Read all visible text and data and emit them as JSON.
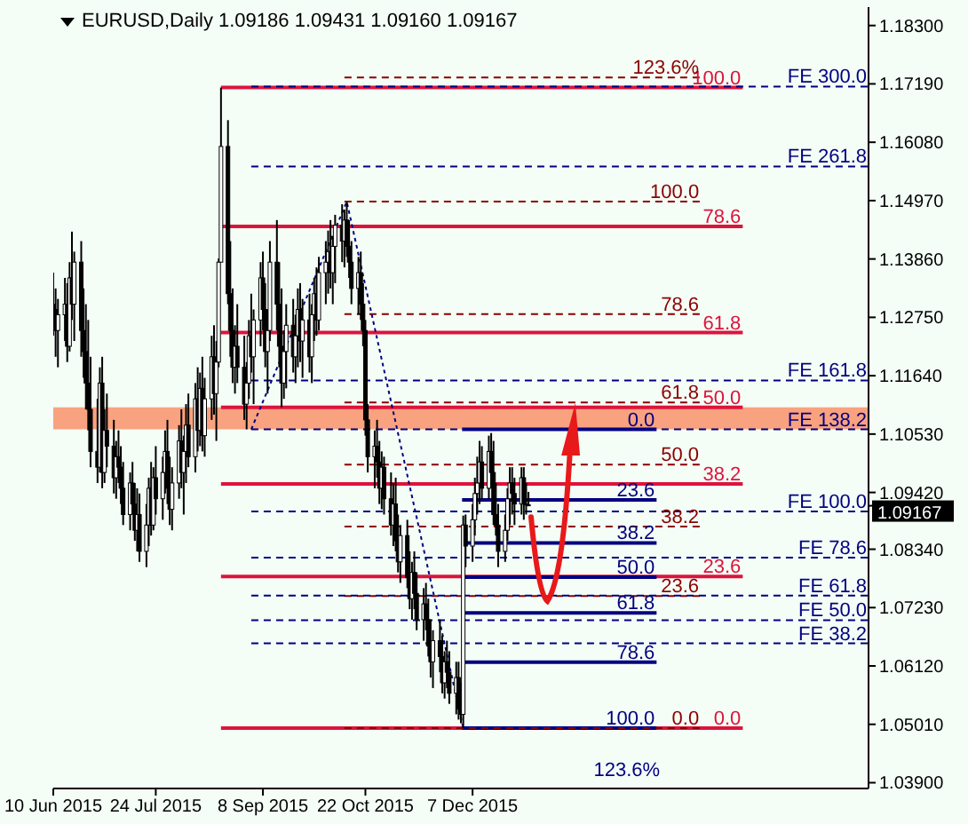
{
  "chart_data": {
    "type": "candlestick",
    "title": "EURUSD,Daily 1.09186 1.09431 1.09160 1.09167",
    "color": "#000000",
    "xlim": [
      "2015-06-10",
      "2016-05-25"
    ],
    "ylim": [
      1.0379,
      1.1865
    ],
    "xticks": [
      {
        "value": "2015-06-10",
        "label": "10 Jun 2015"
      },
      {
        "value": "2015-07-24",
        "label": "24 Jul 2015"
      },
      {
        "value": "2015-09-08",
        "label": "8 Sep 2015"
      },
      {
        "value": "2015-10-22",
        "label": "22 Oct 2015"
      },
      {
        "value": "2015-12-07",
        "label": "7 Dec 2015"
      }
    ],
    "yticks": [
      {
        "value": 1.183,
        "label": "1.18300"
      },
      {
        "value": 1.1719,
        "label": "1.17190"
      },
      {
        "value": 1.1608,
        "label": "1.16080"
      },
      {
        "value": 1.1497,
        "label": "1.14970"
      },
      {
        "value": 1.1386,
        "label": "1.13860"
      },
      {
        "value": 1.1275,
        "label": "1.12750"
      },
      {
        "value": 1.1164,
        "label": "1.11640"
      },
      {
        "value": 1.1053,
        "label": "1.10530"
      },
      {
        "value": 1.0942,
        "label": "1.09420"
      },
      {
        "value": 1.0834,
        "label": "1.08340"
      },
      {
        "value": 1.0723,
        "label": "1.07230"
      },
      {
        "value": 1.0612,
        "label": "1.06120"
      },
      {
        "value": 1.0501,
        "label": "1.05010"
      },
      {
        "value": 1.039,
        "label": "1.03900"
      },
      {
        "value": 1.09167,
        "label": "1.09167"
      }
    ],
    "x": [
      "2015-06-10",
      "2015-06-11",
      "2015-06-12",
      "2015-06-15",
      "2015-06-16",
      "2015-06-17",
      "2015-06-18",
      "2015-06-19",
      "2015-06-22",
      "2015-06-23",
      "2015-06-24",
      "2015-06-25",
      "2015-06-26",
      "2015-06-29",
      "2015-06-30",
      "2015-07-01",
      "2015-07-02",
      "2015-07-03",
      "2015-07-06",
      "2015-07-07",
      "2015-07-08",
      "2015-07-09",
      "2015-07-10",
      "2015-07-13",
      "2015-07-14",
      "2015-07-15",
      "2015-07-16",
      "2015-07-17",
      "2015-07-20",
      "2015-07-21",
      "2015-07-22",
      "2015-07-23",
      "2015-07-24",
      "2015-07-27",
      "2015-07-28",
      "2015-07-29",
      "2015-07-30",
      "2015-07-31",
      "2015-08-03",
      "2015-08-04",
      "2015-08-05",
      "2015-08-06",
      "2015-08-07",
      "2015-08-10",
      "2015-08-11",
      "2015-08-12",
      "2015-08-13",
      "2015-08-14",
      "2015-08-17",
      "2015-08-18",
      "2015-08-19",
      "2015-08-20",
      "2015-08-21",
      "2015-08-24",
      "2015-08-25",
      "2015-08-26",
      "2015-08-27",
      "2015-08-28",
      "2015-08-31",
      "2015-09-01",
      "2015-09-02",
      "2015-09-03",
      "2015-09-04",
      "2015-09-07",
      "2015-09-08",
      "2015-09-09",
      "2015-09-10",
      "2015-09-11",
      "2015-09-14",
      "2015-09-15",
      "2015-09-16",
      "2015-09-17",
      "2015-09-18",
      "2015-09-21",
      "2015-09-22",
      "2015-09-23",
      "2015-09-24",
      "2015-09-25",
      "2015-09-28",
      "2015-09-29",
      "2015-09-30",
      "2015-10-01",
      "2015-10-02",
      "2015-10-05",
      "2015-10-06",
      "2015-10-07",
      "2015-10-08",
      "2015-10-09",
      "2015-10-12",
      "2015-10-13",
      "2015-10-14",
      "2015-10-15",
      "2015-10-16",
      "2015-10-19",
      "2015-10-20",
      "2015-10-21",
      "2015-10-22",
      "2015-10-23",
      "2015-10-26",
      "2015-10-27",
      "2015-10-28",
      "2015-10-29",
      "2015-10-30",
      "2015-11-02",
      "2015-11-03",
      "2015-11-04",
      "2015-11-05",
      "2015-11-06",
      "2015-11-09",
      "2015-11-10",
      "2015-11-11",
      "2015-11-12",
      "2015-11-13",
      "2015-11-16",
      "2015-11-17",
      "2015-11-18",
      "2015-11-19",
      "2015-11-20",
      "2015-11-23",
      "2015-11-24",
      "2015-11-25",
      "2015-11-26",
      "2015-11-27",
      "2015-11-30",
      "2015-12-01",
      "2015-12-02",
      "2015-12-03",
      "2015-12-04",
      "2015-12-07",
      "2015-12-08",
      "2015-12-09",
      "2015-12-10",
      "2015-12-11",
      "2015-12-14",
      "2015-12-15",
      "2015-12-16",
      "2015-12-17",
      "2015-12-18",
      "2015-12-21",
      "2015-12-22",
      "2015-12-23",
      "2015-12-24",
      "2015-12-25",
      "2015-12-28",
      "2015-12-29",
      "2015-12-30",
      "2015-12-31"
    ],
    "ohlc": [
      [
        1.13,
        1.136,
        1.124,
        1.129
      ],
      [
        1.129,
        1.133,
        1.12,
        1.125
      ],
      [
        1.125,
        1.131,
        1.118,
        1.128
      ],
      [
        1.128,
        1.135,
        1.123,
        1.13
      ],
      [
        1.13,
        1.134,
        1.119,
        1.122
      ],
      [
        1.122,
        1.138,
        1.121,
        1.135
      ],
      [
        1.135,
        1.1438,
        1.127,
        1.13
      ],
      [
        1.13,
        1.14,
        1.123,
        1.138
      ],
      [
        1.138,
        1.142,
        1.12,
        1.125
      ],
      [
        1.125,
        1.133,
        1.116,
        1.121
      ],
      [
        1.121,
        1.13,
        1.11,
        1.115
      ],
      [
        1.115,
        1.127,
        1.106,
        1.11
      ],
      [
        1.11,
        1.12,
        1.099,
        1.102
      ],
      [
        1.102,
        1.112,
        1.096,
        1.099
      ],
      [
        1.099,
        1.118,
        1.098,
        1.115
      ],
      [
        1.115,
        1.12,
        1.095,
        1.098
      ],
      [
        1.098,
        1.11,
        1.096,
        1.106
      ],
      [
        1.106,
        1.113,
        1.099,
        1.103
      ],
      [
        1.103,
        1.108,
        1.094,
        1.097
      ],
      [
        1.097,
        1.104,
        1.093,
        1.101
      ],
      [
        1.101,
        1.106,
        1.096,
        1.099
      ],
      [
        1.099,
        1.103,
        1.092,
        1.095
      ],
      [
        1.095,
        1.1,
        1.088,
        1.09
      ],
      [
        1.09,
        1.098,
        1.087,
        1.096
      ],
      [
        1.096,
        1.1,
        1.09,
        1.092
      ],
      [
        1.092,
        1.096,
        1.085,
        1.087
      ],
      [
        1.087,
        1.095,
        1.083,
        1.09
      ],
      [
        1.09,
        1.094,
        1.081,
        1.083
      ],
      [
        1.083,
        1.092,
        1.08,
        1.088
      ],
      [
        1.088,
        1.097,
        1.084,
        1.095
      ],
      [
        1.095,
        1.1,
        1.086,
        1.088
      ],
      [
        1.088,
        1.099,
        1.087,
        1.097
      ],
      [
        1.097,
        1.103,
        1.09,
        1.093
      ],
      [
        1.093,
        1.101,
        1.089,
        1.098
      ],
      [
        1.098,
        1.106,
        1.094,
        1.102
      ],
      [
        1.102,
        1.108,
        1.092,
        1.095
      ],
      [
        1.095,
        1.101,
        1.088,
        1.091
      ],
      [
        1.091,
        1.099,
        1.087,
        1.096
      ],
      [
        1.096,
        1.107,
        1.093,
        1.104
      ],
      [
        1.104,
        1.11,
        1.095,
        1.098
      ],
      [
        1.098,
        1.105,
        1.09,
        1.102
      ],
      [
        1.102,
        1.111,
        1.096,
        1.107
      ],
      [
        1.107,
        1.113,
        1.099,
        1.101
      ],
      [
        1.101,
        1.115,
        1.098,
        1.112
      ],
      [
        1.112,
        1.118,
        1.102,
        1.106
      ],
      [
        1.106,
        1.117,
        1.103,
        1.114
      ],
      [
        1.114,
        1.12,
        1.102,
        1.105
      ],
      [
        1.105,
        1.116,
        1.101,
        1.112
      ],
      [
        1.112,
        1.124,
        1.108,
        1.12
      ],
      [
        1.12,
        1.126,
        1.109,
        1.113
      ],
      [
        1.113,
        1.123,
        1.104,
        1.119
      ],
      [
        1.119,
        1.1387,
        1.118,
        1.138
      ],
      [
        1.138,
        1.1712,
        1.138,
        1.16
      ],
      [
        1.16,
        1.165,
        1.13,
        1.132
      ],
      [
        1.132,
        1.142,
        1.12,
        1.125
      ],
      [
        1.125,
        1.133,
        1.115,
        1.118
      ],
      [
        1.118,
        1.126,
        1.113,
        1.122
      ],
      [
        1.122,
        1.13,
        1.115,
        1.118
      ],
      [
        1.118,
        1.124,
        1.108,
        1.111
      ],
      [
        1.111,
        1.119,
        1.1062,
        1.115
      ],
      [
        1.115,
        1.127,
        1.112,
        1.124
      ],
      [
        1.124,
        1.132,
        1.117,
        1.12
      ],
      [
        1.12,
        1.129,
        1.111,
        1.127
      ],
      [
        1.127,
        1.138,
        1.122,
        1.135
      ],
      [
        1.135,
        1.14,
        1.125,
        1.129
      ],
      [
        1.129,
        1.134,
        1.118,
        1.121
      ],
      [
        1.121,
        1.129,
        1.113,
        1.125
      ],
      [
        1.125,
        1.142,
        1.123,
        1.138
      ],
      [
        1.138,
        1.146,
        1.125,
        1.13
      ],
      [
        1.13,
        1.138,
        1.118,
        1.122
      ],
      [
        1.122,
        1.133,
        1.1104,
        1.115
      ],
      [
        1.115,
        1.125,
        1.112,
        1.121
      ],
      [
        1.121,
        1.13,
        1.114,
        1.126
      ],
      [
        1.126,
        1.131,
        1.117,
        1.12
      ],
      [
        1.12,
        1.128,
        1.115,
        1.124
      ],
      [
        1.124,
        1.133,
        1.118,
        1.129
      ],
      [
        1.129,
        1.134,
        1.119,
        1.123
      ],
      [
        1.123,
        1.131,
        1.116,
        1.127
      ],
      [
        1.127,
        1.132,
        1.117,
        1.12
      ],
      [
        1.12,
        1.13,
        1.115,
        1.128
      ],
      [
        1.128,
        1.135,
        1.123,
        1.132
      ],
      [
        1.132,
        1.137,
        1.124,
        1.127
      ],
      [
        1.127,
        1.139,
        1.125,
        1.136
      ],
      [
        1.136,
        1.142,
        1.13,
        1.138
      ],
      [
        1.138,
        1.144,
        1.132,
        1.14
      ],
      [
        1.14,
        1.146,
        1.133,
        1.136
      ],
      [
        1.136,
        1.143,
        1.13,
        1.141
      ],
      [
        1.141,
        1.147,
        1.134,
        1.145
      ],
      [
        1.145,
        1.149,
        1.138,
        1.142
      ],
      [
        1.142,
        1.148,
        1.137,
        1.146
      ],
      [
        1.146,
        1.1495,
        1.139,
        1.141
      ],
      [
        1.141,
        1.146,
        1.135,
        1.138
      ],
      [
        1.138,
        1.142,
        1.13,
        1.133
      ],
      [
        1.133,
        1.139,
        1.128,
        1.136
      ],
      [
        1.136,
        1.14,
        1.127,
        1.13
      ],
      [
        1.13,
        1.134,
        1.122,
        1.125
      ],
      [
        1.125,
        1.127,
        1.105,
        1.108
      ],
      [
        1.108,
        1.111,
        1.098,
        1.101
      ],
      [
        1.101,
        1.106,
        1.095,
        1.103
      ],
      [
        1.103,
        1.108,
        1.097,
        1.1
      ],
      [
        1.1,
        1.104,
        1.092,
        1.095
      ],
      [
        1.095,
        1.102,
        1.091,
        1.099
      ],
      [
        1.099,
        1.101,
        1.09,
        1.093
      ],
      [
        1.093,
        1.098,
        1.086,
        1.088
      ],
      [
        1.088,
        1.096,
        1.084,
        1.092
      ],
      [
        1.092,
        1.097,
        1.083,
        1.085
      ],
      [
        1.085,
        1.09,
        1.079,
        1.081
      ],
      [
        1.081,
        1.088,
        1.077,
        1.086
      ],
      [
        1.086,
        1.089,
        1.076,
        1.078
      ],
      [
        1.078,
        1.083,
        1.072,
        1.074
      ],
      [
        1.074,
        1.081,
        1.07,
        1.079
      ],
      [
        1.079,
        1.083,
        1.072,
        1.075
      ],
      [
        1.075,
        1.079,
        1.068,
        1.07
      ],
      [
        1.07,
        1.076,
        1.066,
        1.073
      ],
      [
        1.073,
        1.077,
        1.068,
        1.07
      ],
      [
        1.07,
        1.074,
        1.063,
        1.065
      ],
      [
        1.065,
        1.07,
        1.059,
        1.062
      ],
      [
        1.062,
        1.068,
        1.057,
        1.066
      ],
      [
        1.066,
        1.07,
        1.06,
        1.063
      ],
      [
        1.063,
        1.067,
        1.056,
        1.058
      ],
      [
        1.058,
        1.064,
        1.055,
        1.062
      ],
      [
        1.062,
        1.066,
        1.057,
        1.06
      ],
      [
        1.06,
        1.064,
        1.054,
        1.056
      ],
      [
        1.056,
        1.062,
        1.052,
        1.059
      ],
      [
        1.059,
        1.062,
        1.051,
        1.053
      ],
      [
        1.053,
        1.058,
        1.0503,
        1.052
      ],
      [
        1.052,
        1.0898,
        1.0494,
        1.088
      ],
      [
        1.088,
        1.09,
        1.08,
        1.084
      ],
      [
        1.084,
        1.092,
        1.081,
        1.089
      ],
      [
        1.089,
        1.097,
        1.086,
        1.094
      ],
      [
        1.094,
        1.101,
        1.09,
        1.096
      ],
      [
        1.096,
        1.104,
        1.092,
        1.1
      ],
      [
        1.1,
        1.103,
        1.093,
        1.095
      ],
      [
        1.095,
        1.105,
        1.093,
        1.102
      ],
      [
        1.102,
        1.1055,
        1.095,
        1.098
      ],
      [
        1.098,
        1.104,
        1.088,
        1.09
      ],
      [
        1.09,
        1.096,
        1.086,
        1.088
      ],
      [
        1.088,
        1.092,
        1.08,
        1.083
      ],
      [
        1.083,
        1.09,
        1.081,
        1.087
      ],
      [
        1.087,
        1.095,
        1.085,
        1.093
      ],
      [
        1.093,
        1.099,
        1.088,
        1.096
      ],
      [
        1.096,
        1.099,
        1.09,
        1.094
      ],
      [
        1.094,
        1.097,
        1.088,
        1.092
      ],
      [
        1.092,
        1.099,
        1.09,
        1.097
      ],
      [
        1.097,
        1.099,
        1.089,
        1.092
      ],
      [
        1.092,
        1.096,
        1.09,
        1.0919
      ],
      [
        1.09186,
        1.09431,
        1.0916,
        1.09167
      ]
    ],
    "series": [
      {
        "type": "line",
        "color": "#dc143c",
        "line_style": "solid",
        "x": [
          "2015-08-21",
          "2016-04-01"
        ],
        "values": [
          1.1712,
          1.1712
        ]
      },
      {
        "type": "line",
        "color": "#dc143c",
        "line_style": "solid",
        "x": [
          "2015-08-21",
          "2016-04-01"
        ],
        "values": [
          1.1448,
          1.1448
        ]
      },
      {
        "type": "line",
        "color": "#dc143c",
        "line_style": "solid",
        "x": [
          "2015-08-21",
          "2016-04-01"
        ],
        "values": [
          1.1246,
          1.1246
        ]
      },
      {
        "type": "line",
        "color": "#dc143c",
        "line_style": "solid",
        "x": [
          "2015-08-21",
          "2016-04-01"
        ],
        "values": [
          1.1104,
          1.1104
        ]
      },
      {
        "type": "line",
        "color": "#dc143c",
        "line_style": "solid",
        "x": [
          "2015-08-21",
          "2016-04-01"
        ],
        "values": [
          1.0958,
          1.0958
        ]
      },
      {
        "type": "line",
        "color": "#dc143c",
        "line_style": "solid",
        "x": [
          "2015-08-21",
          "2016-04-01"
        ],
        "values": [
          1.0782,
          1.0782
        ]
      },
      {
        "type": "line",
        "color": "#dc143c",
        "line_style": "solid",
        "x": [
          "2015-08-21",
          "2016-04-01"
        ],
        "values": [
          1.0494,
          1.0494
        ]
      },
      {
        "type": "line",
        "color": "#8b0000",
        "line_style": "dashed",
        "x": [
          "2015-10-13",
          "2016-03-14"
        ],
        "values": [
          1.1731,
          1.1731
        ]
      },
      {
        "type": "line",
        "color": "#8b0000",
        "line_style": "dashed",
        "x": [
          "2015-10-13",
          "2016-03-14"
        ],
        "values": [
          1.1495,
          1.1495
        ]
      },
      {
        "type": "line",
        "color": "#8b0000",
        "line_style": "dashed",
        "x": [
          "2015-10-13",
          "2016-03-14"
        ],
        "values": [
          1.1281,
          1.1281
        ]
      },
      {
        "type": "line",
        "color": "#8b0000",
        "line_style": "dashed",
        "x": [
          "2015-10-13",
          "2016-03-14"
        ],
        "values": [
          1.1113,
          1.1113
        ]
      },
      {
        "type": "line",
        "color": "#8b0000",
        "line_style": "dashed",
        "x": [
          "2015-10-13",
          "2016-03-14"
        ],
        "values": [
          1.0995,
          1.0995
        ]
      },
      {
        "type": "line",
        "color": "#8b0000",
        "line_style": "dashed",
        "x": [
          "2015-10-13",
          "2016-03-14"
        ],
        "values": [
          1.0877,
          1.0877
        ]
      },
      {
        "type": "line",
        "color": "#8b0000",
        "line_style": "dashed",
        "x": [
          "2015-10-13",
          "2016-03-14"
        ],
        "values": [
          1.0745,
          1.0745
        ]
      },
      {
        "type": "line",
        "color": "#8b0000",
        "line_style": "dashed",
        "x": [
          "2015-10-13",
          "2016-03-14"
        ],
        "values": [
          1.0494,
          1.0494
        ]
      },
      {
        "type": "line",
        "color": "#000080",
        "line_style": "dashed",
        "x": [
          "2015-09-03",
          "2016-05-25"
        ],
        "values": [
          1.1714,
          1.1714
        ]
      },
      {
        "type": "line",
        "color": "#000080",
        "line_style": "dashed",
        "x": [
          "2015-09-03",
          "2016-05-25"
        ],
        "values": [
          1.1562,
          1.1562
        ]
      },
      {
        "type": "line",
        "color": "#000080",
        "line_style": "dashed",
        "x": [
          "2015-09-03",
          "2016-05-25"
        ],
        "values": [
          1.1155,
          1.1155
        ]
      },
      {
        "type": "line",
        "color": "#000080",
        "line_style": "dashed",
        "x": [
          "2015-09-03",
          "2016-05-25"
        ],
        "values": [
          1.1062,
          1.1062
        ]
      },
      {
        "type": "line",
        "color": "#000080",
        "line_style": "dashed",
        "x": [
          "2015-09-03",
          "2016-05-25"
        ],
        "values": [
          1.0906,
          1.0906
        ]
      },
      {
        "type": "line",
        "color": "#000080",
        "line_style": "dashed",
        "x": [
          "2015-09-03",
          "2016-05-25"
        ],
        "values": [
          1.0818,
          1.0818
        ]
      },
      {
        "type": "line",
        "color": "#000080",
        "line_style": "dashed",
        "x": [
          "2015-09-03",
          "2016-05-25"
        ],
        "values": [
          1.0746,
          1.0746
        ]
      },
      {
        "type": "line",
        "color": "#000080",
        "line_style": "dashed",
        "x": [
          "2015-09-03",
          "2016-05-25"
        ],
        "values": [
          1.0699,
          1.0699
        ]
      },
      {
        "type": "line",
        "color": "#000080",
        "line_style": "dashed",
        "x": [
          "2015-09-03",
          "2016-05-25"
        ],
        "values": [
          1.0655,
          1.0655
        ]
      },
      {
        "type": "line",
        "color": "#000080",
        "line_style": "solid",
        "x": [
          "2015-12-02T12:00",
          "2016-02-24"
        ],
        "values": [
          1.1062,
          1.1062
        ]
      },
      {
        "type": "line",
        "color": "#000080",
        "line_style": "solid",
        "x": [
          "2015-12-02T12:00",
          "2016-02-24"
        ],
        "values": [
          1.0928,
          1.0928
        ]
      },
      {
        "type": "line",
        "color": "#000080",
        "line_style": "solid",
        "x": [
          "2015-12-02T12:00",
          "2016-02-24"
        ],
        "values": [
          1.0846,
          1.0846
        ]
      },
      {
        "type": "line",
        "color": "#000080",
        "line_style": "solid",
        "x": [
          "2015-12-02T12:00",
          "2016-02-24"
        ],
        "values": [
          1.0781,
          1.0781
        ]
      },
      {
        "type": "line",
        "color": "#000080",
        "line_style": "solid",
        "x": [
          "2015-12-02T12:00",
          "2016-02-24"
        ],
        "values": [
          1.0713,
          1.0713
        ]
      },
      {
        "type": "line",
        "color": "#000080",
        "line_style": "solid",
        "x": [
          "2015-12-02T12:00",
          "2016-02-24"
        ],
        "values": [
          1.0619,
          1.0619
        ]
      },
      {
        "type": "line",
        "color": "#000080",
        "line_style": "solid",
        "x": [
          "2015-12-02T12:00",
          "2016-02-24"
        ],
        "values": [
          1.0494,
          1.0494
        ]
      },
      {
        "type": "line",
        "color": "#000080",
        "line_style": "dotted",
        "x": [
          "2015-09-03",
          "2015-10-14",
          "2015-12-03"
        ],
        "values": [
          1.1062,
          1.1495,
          1.0494
        ]
      }
    ],
    "bands": [
      {
        "axis": "y",
        "from": 1.1062,
        "to": 1.1104,
        "color": "#f9a27f"
      }
    ],
    "annotations": [
      {
        "text": "100.0",
        "x": "2016-04-01",
        "y": 1.1712
      },
      {
        "text": "78.6",
        "x": "2016-04-01",
        "y": 1.1448
      },
      {
        "text": "61.8",
        "x": "2016-04-01",
        "y": 1.1246
      },
      {
        "text": "50.0",
        "x": "2016-04-01",
        "y": 1.1104
      },
      {
        "text": "38.2",
        "x": "2016-04-01",
        "y": 1.0958
      },
      {
        "text": "23.6",
        "x": "2016-04-01",
        "y": 1.0782
      },
      {
        "text": "0.0",
        "x": "2016-04-01",
        "y": 1.0494
      },
      {
        "text": "123.6%",
        "x": "2016-03-14",
        "y": 1.1731
      },
      {
        "text": "100.0",
        "x": "2016-03-14",
        "y": 1.1495
      },
      {
        "text": "78.6",
        "x": "2016-03-14",
        "y": 1.1281
      },
      {
        "text": "61.8",
        "x": "2016-03-14",
        "y": 1.1113
      },
      {
        "text": "50.0",
        "x": "2016-03-14",
        "y": 1.0995
      },
      {
        "text": "38.2",
        "x": "2016-03-14",
        "y": 1.0877
      },
      {
        "text": "23.6",
        "x": "2016-03-14",
        "y": 1.0745
      },
      {
        "text": "0.0",
        "x": "2016-03-14",
        "y": 1.0494
      },
      {
        "text": "FE 300.0",
        "x": "2016-05-25",
        "y": 1.1714
      },
      {
        "text": "FE 261.8",
        "x": "2016-05-25",
        "y": 1.1562
      },
      {
        "text": "FE 161.8",
        "x": "2016-05-25",
        "y": 1.1155
      },
      {
        "text": "FE 138.2",
        "x": "2016-05-25",
        "y": 1.1062
      },
      {
        "text": "FE 100.0",
        "x": "2016-05-25",
        "y": 1.0906
      },
      {
        "text": "FE 78.6",
        "x": "2016-05-25",
        "y": 1.0818
      },
      {
        "text": "FE 61.8",
        "x": "2016-05-25",
        "y": 1.0746
      },
      {
        "text": "FE 50.0",
        "x": "2016-05-25",
        "y": 1.0699
      },
      {
        "text": "FE 38.2",
        "x": "2016-05-25",
        "y": 1.0655
      },
      {
        "text": "0.0",
        "x": "2016-02-24",
        "y": 1.1062
      },
      {
        "text": "23.6",
        "x": "2016-02-24",
        "y": 1.0928
      },
      {
        "text": "38.2",
        "x": "2016-02-24",
        "y": 1.0846
      },
      {
        "text": "50.0",
        "x": "2016-02-24",
        "y": 1.0781
      },
      {
        "text": "61.8",
        "x": "2016-02-24",
        "y": 1.0713
      },
      {
        "text": "78.6",
        "x": "2016-02-24",
        "y": 1.0619
      },
      {
        "text": "100.0",
        "x": "2016-02-24",
        "y": 1.0494
      },
      "123.6%"
    ]
  }
}
